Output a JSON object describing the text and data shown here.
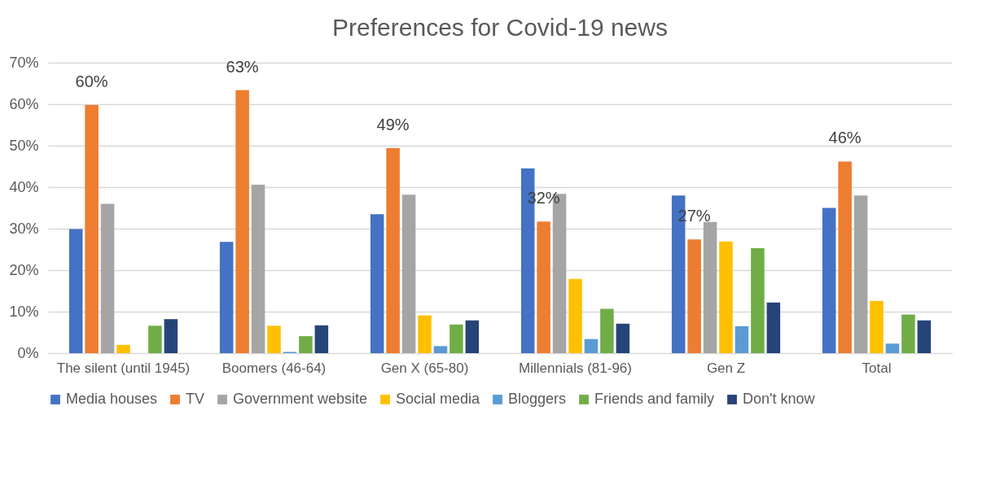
{
  "chart_data": {
    "type": "bar",
    "title": "Preferences for Covid-19 news",
    "categories": [
      "The silent (until 1945)",
      "Boomers (46-64)",
      "Gen X (65-80)",
      "Millennials (81-96)",
      "Gen Z",
      "Total"
    ],
    "series": [
      {
        "name": "Media houses",
        "color": "#4472c4",
        "values": [
          29.9,
          26.8,
          33.5,
          44.5,
          38.0,
          35.0
        ]
      },
      {
        "name": "TV",
        "color": "#ed7d31",
        "values": [
          59.8,
          63.4,
          49.4,
          31.7,
          27.4,
          46.2
        ],
        "value_labels": [
          "60%",
          "63%",
          "49%",
          "32%",
          "27%",
          "46%"
        ]
      },
      {
        "name": "Government website",
        "color": "#a5a5a5",
        "values": [
          36.0,
          40.6,
          38.2,
          38.4,
          31.6,
          38.0
        ]
      },
      {
        "name": "Social media",
        "color": "#ffc000",
        "values": [
          2.0,
          6.6,
          9.1,
          17.9,
          26.9,
          12.6
        ]
      },
      {
        "name": "Bloggers",
        "color": "#5b9bd5",
        "values": [
          0,
          0.3,
          1.7,
          3.4,
          6.5,
          2.3
        ]
      },
      {
        "name": "Friends and family",
        "color": "#70ad47",
        "values": [
          6.6,
          4.1,
          6.9,
          10.7,
          25.3,
          9.3
        ]
      },
      {
        "name": "Don't know",
        "color": "#264478",
        "values": [
          8.2,
          6.7,
          7.9,
          7.1,
          12.2,
          7.9
        ]
      }
    ],
    "ylim": [
      0,
      70
    ],
    "yticks": [
      {
        "value": 0,
        "label": "0%"
      },
      {
        "value": 10,
        "label": "10%"
      },
      {
        "value": 20,
        "label": "20%"
      },
      {
        "value": 30,
        "label": "30%"
      },
      {
        "value": 40,
        "label": "40%"
      },
      {
        "value": 50,
        "label": "50%"
      },
      {
        "value": 60,
        "label": "60%"
      },
      {
        "value": 70,
        "label": "70%"
      }
    ],
    "grid": "y",
    "legend": "bottom"
  }
}
